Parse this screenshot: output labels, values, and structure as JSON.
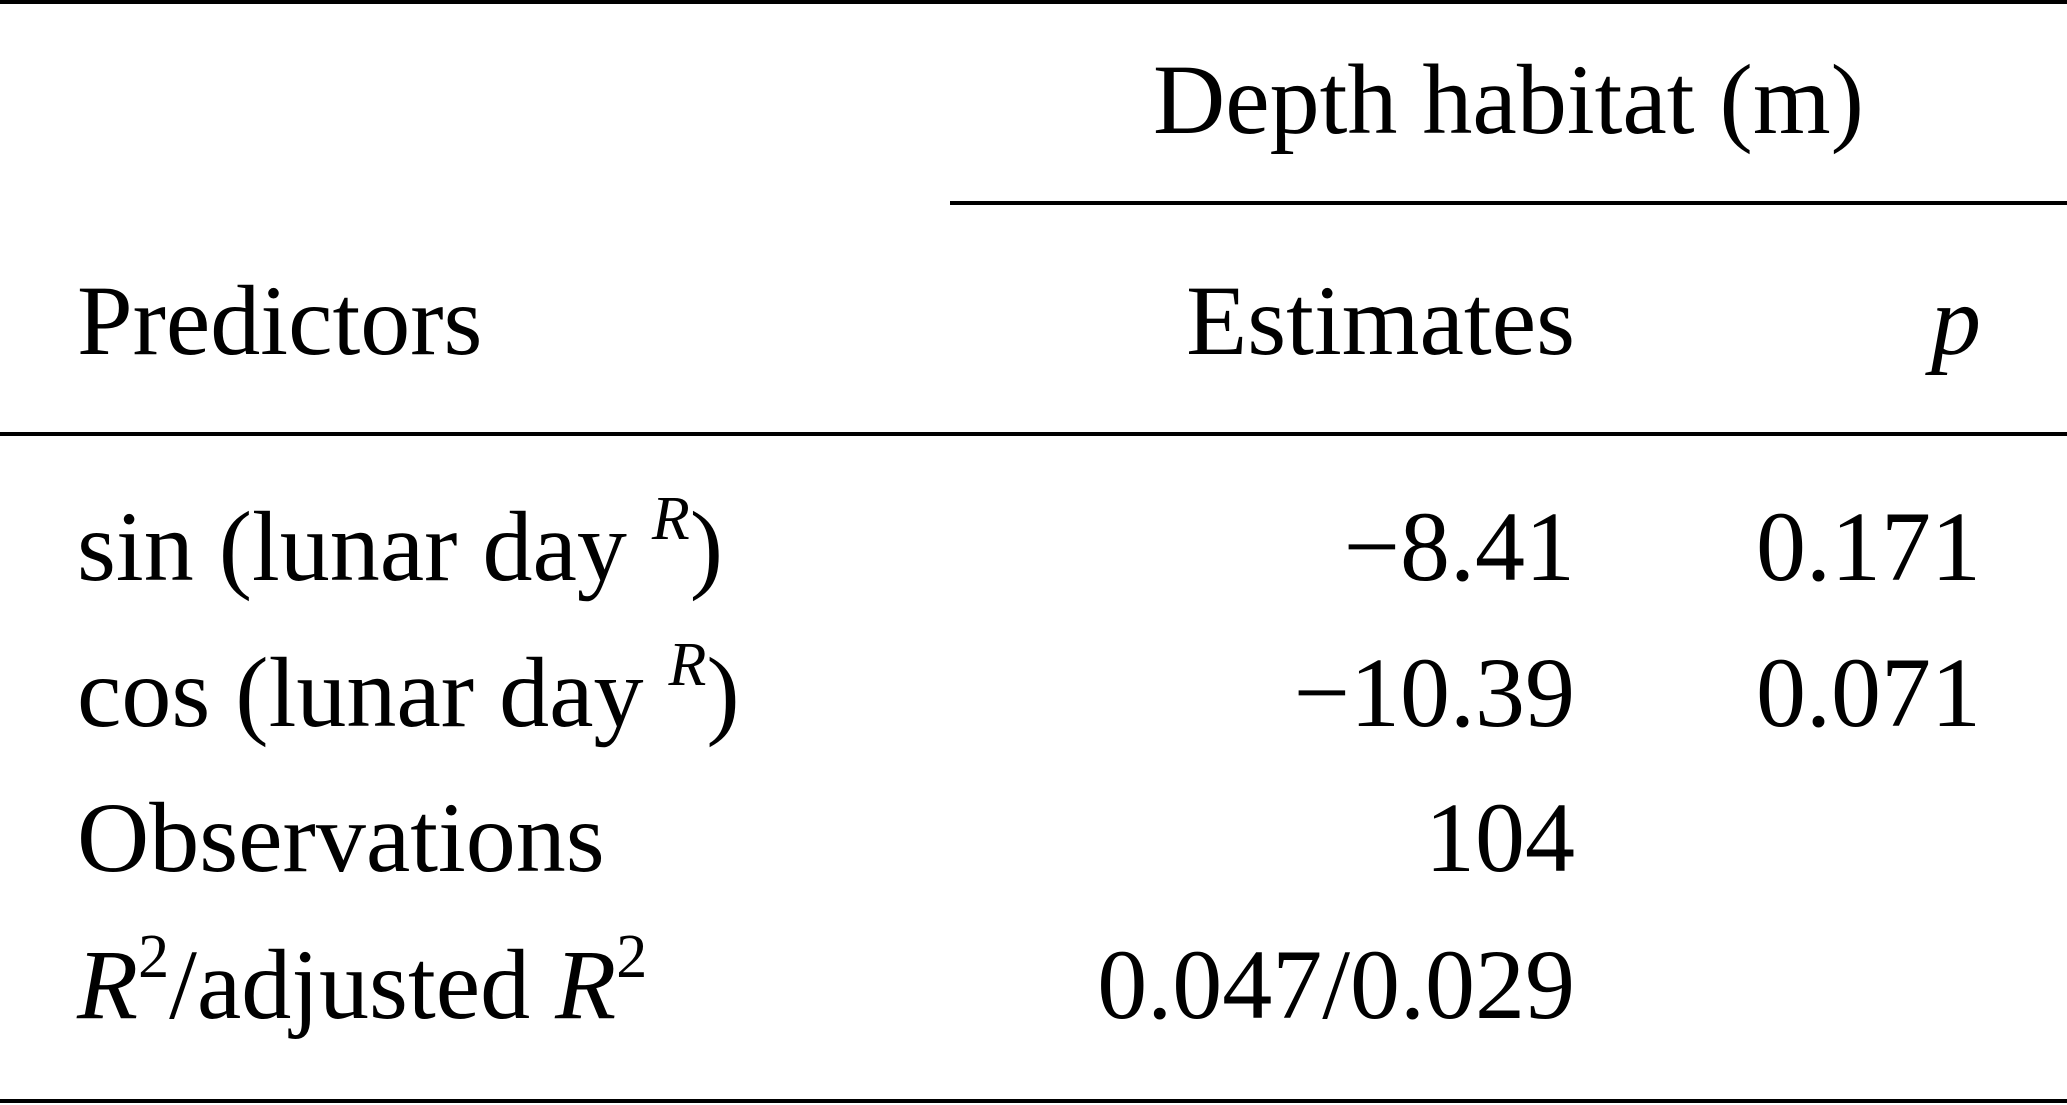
{
  "table": {
    "group_header": "Depth habitat (m)",
    "columns": {
      "predictors": "Predictors",
      "estimates": "Estimates",
      "p": "p"
    },
    "rows": [
      {
        "label_prefix": "sin (lunar day ",
        "label_sup": "R",
        "label_suffix": ")",
        "estimate": "−8.41",
        "p": "0.171"
      },
      {
        "label_prefix": "cos (lunar day ",
        "label_sup": "R",
        "label_suffix": ")",
        "estimate": "−10.39",
        "p": "0.071"
      },
      {
        "label": "Observations",
        "estimate": "104",
        "p": ""
      },
      {
        "label_r1": "R",
        "label_sup1": "2",
        "label_mid": "/adjusted ",
        "label_r2": "R",
        "label_sup2": "2",
        "estimate": "0.047/0.029",
        "p": ""
      }
    ]
  }
}
